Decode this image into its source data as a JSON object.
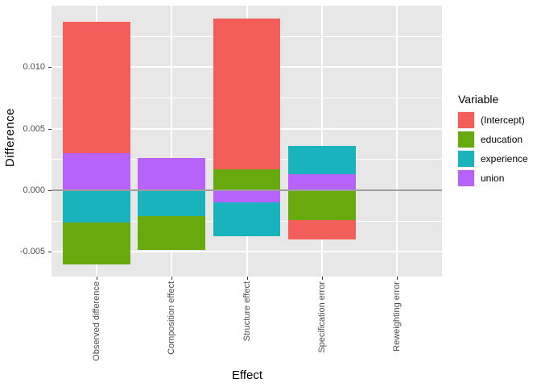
{
  "figure": {
    "background": "#FFFFFF",
    "panel_bg": "#E7E7E7",
    "grid_color": "#FFFFFF",
    "zero_line_color": "#9E9E9E",
    "axis_text_color": "#4D4D4D"
  },
  "axes": {
    "y_title": "Difference",
    "x_title": "Effect",
    "y_ticks": [
      {
        "label": "0.010",
        "value": 0.01
      },
      {
        "label": "0.005",
        "value": 0.005
      },
      {
        "label": "0.000",
        "value": 0.0
      },
      {
        "label": "-0.005",
        "value": -0.005
      }
    ],
    "y_minor": [
      0.0125,
      0.0075,
      0.0025,
      -0.0025
    ]
  },
  "legend": {
    "title": "Variable",
    "position": "right",
    "items": [
      {
        "label": "(Intercept)",
        "color": "#F35E5B"
      },
      {
        "label": "education",
        "color": "#68A90D"
      },
      {
        "label": "experience",
        "color": "#18B3BC"
      },
      {
        "label": "union",
        "color": "#B763FB"
      }
    ]
  },
  "chart_data": {
    "type": "bar",
    "stacked": true,
    "title": "",
    "xlabel": "Effect",
    "ylabel": "Difference",
    "categories": [
      "Observed difference",
      "Composition effect",
      "Structure effect",
      "Specification error",
      "Reweighting error"
    ],
    "series": [
      {
        "name": "(Intercept)",
        "color": "#F35E5B",
        "values": [
          0.0107,
          0.0,
          0.01227,
          -0.00157,
          0.0
        ]
      },
      {
        "name": "education",
        "color": "#68A90D",
        "values": [
          -0.00337,
          -0.00273,
          0.0017,
          -0.00244,
          0.0
        ]
      },
      {
        "name": "experience",
        "color": "#18B3BC",
        "values": [
          -0.00262,
          -0.00212,
          -0.00275,
          0.00227,
          0.0
        ]
      },
      {
        "name": "union",
        "color": "#B763FB",
        "values": [
          0.00301,
          0.00262,
          -0.00096,
          0.00131,
          0.0
        ]
      }
    ],
    "bar_totals_positive": [
      0.01371,
      0.00262,
      0.01397,
      0.00358,
      0.0
    ],
    "bar_totals_negative": [
      -0.00599,
      -0.00485,
      -0.00371,
      -0.00401,
      0.0
    ],
    "hline": 0.0,
    "ylim": [
      -0.007,
      0.015
    ],
    "grid": true,
    "legend_position": "right",
    "bar_width_fraction": 0.9
  }
}
